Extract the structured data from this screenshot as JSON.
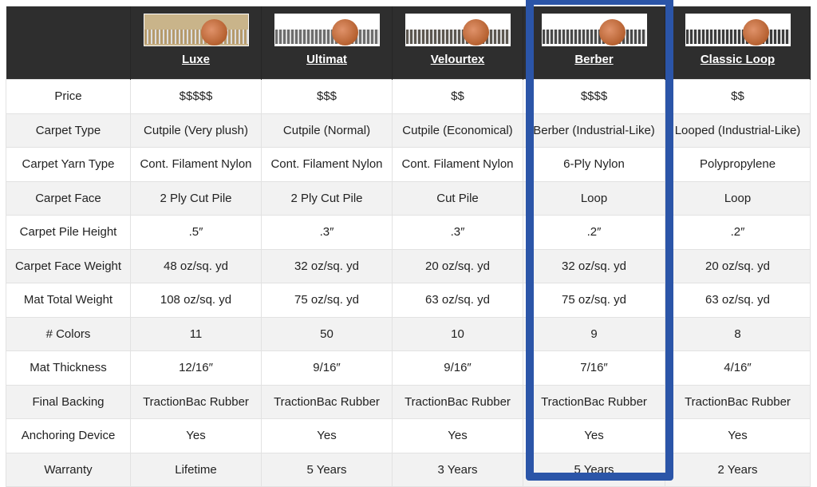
{
  "products": [
    {
      "name": "Luxe",
      "image": "carpet-sample-with-penny",
      "tone": "#b59a6c"
    },
    {
      "name": "Ultimat",
      "image": "carpet-sample-with-penny",
      "tone": "#6e6e6e"
    },
    {
      "name": "Velourtex",
      "image": "carpet-sample-with-penny",
      "tone": "#5c5750"
    },
    {
      "name": "Berber",
      "image": "carpet-sample-with-penny",
      "tone": "#4a4a4a"
    },
    {
      "name": "Classic Loop",
      "image": "carpet-sample-with-penny",
      "tone": "#3c3c3c"
    }
  ],
  "highlighted_product": "Berber",
  "highlight_color": "#2b55a8",
  "rows": [
    {
      "label": "Price",
      "values": [
        "$$$$$",
        "$$$",
        "$$",
        "$$$$",
        "$$"
      ]
    },
    {
      "label": "Carpet Type",
      "values": [
        "Cutpile (Very plush)",
        "Cutpile (Normal)",
        "Cutpile (Economical)",
        "Berber (Industrial-Like)",
        "Looped (Industrial-Like)"
      ]
    },
    {
      "label": "Carpet Yarn Type",
      "values": [
        "Cont. Filament Nylon",
        "Cont. Filament Nylon",
        "Cont. Filament Nylon",
        "6-Ply Nylon",
        "Polypropylene"
      ]
    },
    {
      "label": "Carpet Face",
      "values": [
        "2 Ply Cut Pile",
        "2 Ply Cut Pile",
        "Cut Pile",
        "Loop",
        "Loop"
      ]
    },
    {
      "label": "Carpet Pile Height",
      "values": [
        ".5″",
        ".3″",
        ".3″",
        ".2″",
        ".2″"
      ]
    },
    {
      "label": "Carpet Face Weight",
      "values": [
        "48 oz/sq. yd",
        "32 oz/sq. yd",
        "20 oz/sq. yd",
        "32 oz/sq. yd",
        "20 oz/sq. yd"
      ]
    },
    {
      "label": "Mat Total Weight",
      "values": [
        "108 oz/sq. yd",
        "75 oz/sq. yd",
        "63 oz/sq. yd",
        "75 oz/sq. yd",
        "63 oz/sq. yd"
      ]
    },
    {
      "label": "# Colors",
      "values": [
        "11",
        "50",
        "10",
        "9",
        "8"
      ]
    },
    {
      "label": "Mat Thickness",
      "values": [
        "12/16″",
        "9/16″",
        "9/16″",
        "7/16″",
        "4/16″"
      ]
    },
    {
      "label": "Final Backing",
      "values": [
        "TractionBac Rubber",
        "TractionBac Rubber",
        "TractionBac Rubber",
        "TractionBac Rubber",
        "TractionBac Rubber"
      ]
    },
    {
      "label": "Anchoring Device",
      "values": [
        "Yes",
        "Yes",
        "Yes",
        "Yes",
        "Yes"
      ]
    },
    {
      "label": "Warranty",
      "values": [
        "Lifetime",
        "5 Years",
        "3 Years",
        "5 Years",
        "2 Years"
      ]
    }
  ]
}
